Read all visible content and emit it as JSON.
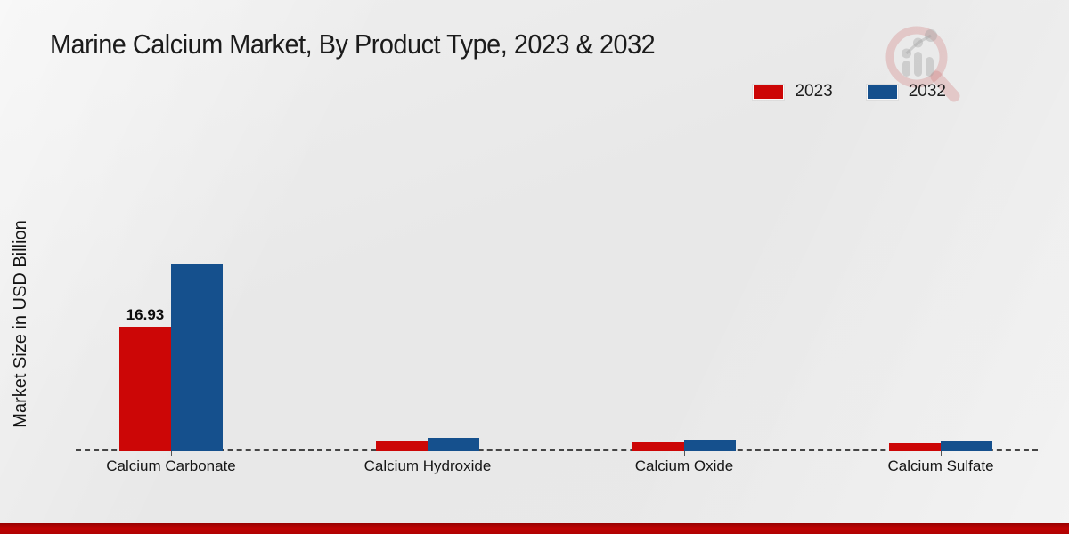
{
  "page": {
    "title": "Marine Calcium Market, By Product Type, 2023 & 2032",
    "ylabel": "Market Size in USD Billion"
  },
  "icons": {
    "watermark_logo": "magnifier-bar-chart-logo"
  },
  "colors": {
    "series_2023": "#cc0606",
    "series_2032": "#15508d",
    "bottom_strip": "#bf0303",
    "baseline": "#454545"
  },
  "chart_data": {
    "type": "bar",
    "title": "Marine Calcium Market, By Product Type, 2023 & 2032",
    "xlabel": "",
    "ylabel": "Market Size in USD Billion",
    "categories": [
      "Calcium Carbonate",
      "Calcium Hydroxide",
      "Calcium Oxide",
      "Calcium Sulfate"
    ],
    "series": [
      {
        "name": "2023",
        "color": "#cc0606",
        "values": [
          16.93,
          1.45,
          1.2,
          1.1
        ]
      },
      {
        "name": "2032",
        "color": "#15508d",
        "values": [
          25.4,
          1.85,
          1.6,
          1.45
        ]
      }
    ],
    "annotations": [
      {
        "category_index": 0,
        "series_index": 0,
        "text": "16.93"
      }
    ],
    "ylim": [
      0,
      27
    ],
    "grid": false,
    "zero_line": "dashed",
    "legend_position": "top-right"
  }
}
